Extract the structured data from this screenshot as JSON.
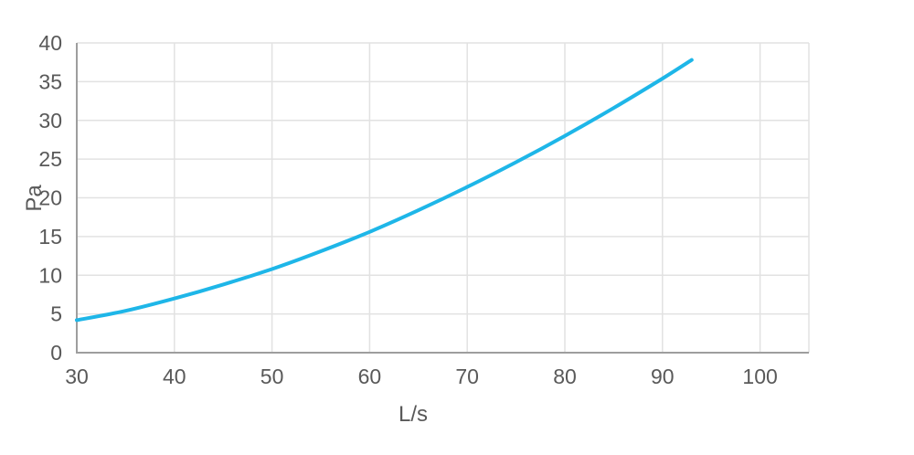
{
  "chart_data": {
    "type": "line",
    "x": [
      30,
      35,
      40,
      45,
      50,
      55,
      60,
      65,
      70,
      75,
      80,
      85,
      90,
      93
    ],
    "y": [
      4.2,
      5.4,
      7.0,
      8.8,
      10.8,
      13.1,
      15.6,
      18.4,
      21.4,
      24.6,
      28.0,
      31.6,
      35.4,
      37.8
    ],
    "title": "",
    "xlabel": "L/s",
    "ylabel": "Pa",
    "xticks": [
      30,
      40,
      50,
      60,
      70,
      80,
      90,
      100
    ],
    "yticks": [
      0,
      5,
      10,
      15,
      20,
      25,
      30,
      35,
      40
    ],
    "xlim": [
      30,
      105
    ],
    "ylim": [
      0,
      40
    ],
    "grid": true,
    "legend": false,
    "line_width": 4,
    "colors": {
      "line": "#1eb6e8",
      "grid": "#e2e2e2",
      "axis": "#9e9e9e",
      "tick_text": "#595959"
    }
  }
}
